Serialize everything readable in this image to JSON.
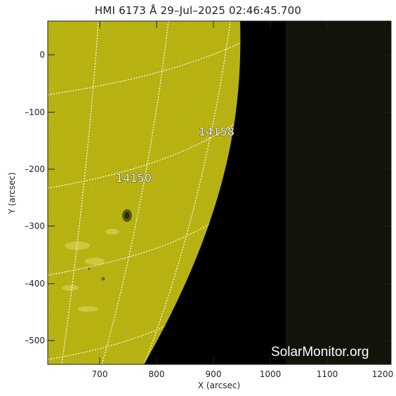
{
  "title": "HMI 6173 Å 29–Jul–2025 02:46:45.700",
  "axes": {
    "xlabel": "X (arcsec)",
    "ylabel": "Y (arcsec)",
    "xticks": [
      "700",
      "800",
      "900",
      "1000",
      "1100",
      "1200"
    ],
    "yticks": [
      "0",
      "–100",
      "–200",
      "–300",
      "–400",
      "–500"
    ]
  },
  "regions": [
    {
      "id": "14158"
    },
    {
      "id": "14150"
    }
  ],
  "watermark": "SolarMonitor.org",
  "colors": {
    "disk": "#c9c414",
    "space": "#000000",
    "offdata": "#13130a",
    "grid": "#ffffff"
  }
}
